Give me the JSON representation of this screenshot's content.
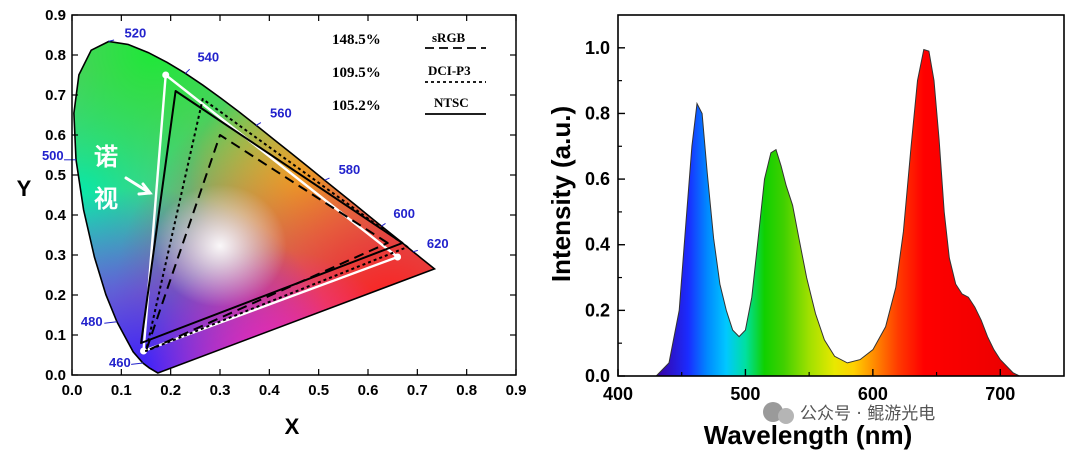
{
  "chart_data": [
    {
      "type": "scatter",
      "title": "",
      "xlabel": "X",
      "ylabel": "Y",
      "xlim": [
        0.0,
        0.9
      ],
      "ylim": [
        0.0,
        0.9
      ],
      "xticks": [
        "0.0",
        "0.1",
        "0.2",
        "0.3",
        "0.4",
        "0.5",
        "0.6",
        "0.7",
        "0.8",
        "0.9"
      ],
      "yticks": [
        "0.0",
        "0.1",
        "0.2",
        "0.3",
        "0.4",
        "0.5",
        "0.6",
        "0.7",
        "0.8",
        "0.9"
      ],
      "wavelength_labels": [
        {
          "text": "460",
          "x": 0.144,
          "y": 0.03
        },
        {
          "text": "480",
          "x": 0.091,
          "y": 0.133
        },
        {
          "text": "500",
          "x": 0.008,
          "y": 0.538
        },
        {
          "text": "520",
          "x": 0.074,
          "y": 0.834
        },
        {
          "text": "540",
          "x": 0.23,
          "y": 0.754
        },
        {
          "text": "560",
          "x": 0.373,
          "y": 0.624
        },
        {
          "text": "580",
          "x": 0.512,
          "y": 0.487
        },
        {
          "text": "600",
          "x": 0.627,
          "y": 0.372
        },
        {
          "text": "620",
          "x": 0.691,
          "y": 0.308
        }
      ],
      "locus": [
        [
          0.1741,
          0.005
        ],
        [
          0.1566,
          0.0177
        ],
        [
          0.144,
          0.0297
        ],
        [
          0.1241,
          0.0578
        ],
        [
          0.0913,
          0.1327
        ],
        [
          0.0687,
          0.2007
        ],
        [
          0.0454,
          0.295
        ],
        [
          0.0235,
          0.4127
        ],
        [
          0.0082,
          0.5384
        ],
        [
          0.0039,
          0.6548
        ],
        [
          0.0139,
          0.7502
        ],
        [
          0.0389,
          0.812
        ],
        [
          0.0743,
          0.8338
        ],
        [
          0.1142,
          0.8262
        ],
        [
          0.1547,
          0.8059
        ],
        [
          0.1929,
          0.7816
        ],
        [
          0.2296,
          0.7543
        ],
        [
          0.2658,
          0.7243
        ],
        [
          0.3016,
          0.6923
        ],
        [
          0.3373,
          0.6589
        ],
        [
          0.3731,
          0.6245
        ],
        [
          0.4087,
          0.5896
        ],
        [
          0.4441,
          0.5547
        ],
        [
          0.4788,
          0.5202
        ],
        [
          0.5125,
          0.4866
        ],
        [
          0.5448,
          0.4544
        ],
        [
          0.5752,
          0.4242
        ],
        [
          0.6029,
          0.3965
        ],
        [
          0.627,
          0.3725
        ],
        [
          0.6482,
          0.3514
        ],
        [
          0.6658,
          0.334
        ],
        [
          0.6801,
          0.3197
        ],
        [
          0.6915,
          0.3083
        ],
        [
          0.7006,
          0.2993
        ],
        [
          0.7079,
          0.292
        ],
        [
          0.714,
          0.2859
        ],
        [
          0.7347,
          0.2653
        ]
      ],
      "series": [
        {
          "name": "",
          "coverage": "148.5%",
          "points": [
            [
              0.19,
              0.75
            ],
            [
              0.66,
              0.295
            ],
            [
              0.145,
              0.06
            ]
          ],
          "style": "white-solid"
        },
        {
          "name": "sRGB",
          "coverage": "148.5%",
          "points": [
            [
              0.64,
              0.33
            ],
            [
              0.3,
              0.6
            ],
            [
              0.15,
              0.06
            ]
          ],
          "style": "black-dash-long"
        },
        {
          "name": "DCI-P3",
          "coverage": "109.5%",
          "points": [
            [
              0.68,
              0.32
            ],
            [
              0.265,
              0.69
            ],
            [
              0.15,
              0.06
            ]
          ],
          "style": "black-dash-short"
        },
        {
          "name": "NTSC",
          "coverage": "105.2%",
          "points": [
            [
              0.67,
              0.33
            ],
            [
              0.21,
              0.71
            ],
            [
              0.14,
              0.08
            ]
          ],
          "style": "black-solid"
        }
      ],
      "legend": [
        {
          "value": "148.5%",
          "name": "sRGB"
        },
        {
          "value": "109.5%",
          "name": "DCI-P3"
        },
        {
          "value": "105.2%",
          "name": "NTSC"
        }
      ],
      "annotation": [
        "诺",
        "视"
      ],
      "legend_position": "top-right"
    },
    {
      "type": "area",
      "title": "",
      "xlabel": "Wavelength (nm)",
      "ylabel": "Intensity (a.u.)",
      "xlim": [
        400,
        750
      ],
      "ylim": [
        0.0,
        1.1
      ],
      "xticks": [
        "400",
        "500",
        "600",
        "700"
      ],
      "yticks": [
        "0.0",
        "0.2",
        "0.4",
        "0.6",
        "0.8",
        "1.0"
      ],
      "spectrum": [
        [
          430,
          0.0
        ],
        [
          440,
          0.04
        ],
        [
          448,
          0.2
        ],
        [
          453,
          0.45
        ],
        [
          458,
          0.7
        ],
        [
          462,
          0.83
        ],
        [
          466,
          0.8
        ],
        [
          470,
          0.62
        ],
        [
          475,
          0.42
        ],
        [
          480,
          0.28
        ],
        [
          485,
          0.2
        ],
        [
          490,
          0.14
        ],
        [
          495,
          0.12
        ],
        [
          500,
          0.14
        ],
        [
          505,
          0.24
        ],
        [
          510,
          0.42
        ],
        [
          515,
          0.6
        ],
        [
          520,
          0.68
        ],
        [
          524,
          0.69
        ],
        [
          528,
          0.64
        ],
        [
          532,
          0.58
        ],
        [
          537,
          0.52
        ],
        [
          542,
          0.42
        ],
        [
          548,
          0.3
        ],
        [
          555,
          0.19
        ],
        [
          562,
          0.11
        ],
        [
          570,
          0.06
        ],
        [
          580,
          0.04
        ],
        [
          590,
          0.05
        ],
        [
          600,
          0.08
        ],
        [
          610,
          0.15
        ],
        [
          618,
          0.27
        ],
        [
          624,
          0.44
        ],
        [
          630,
          0.7
        ],
        [
          635,
          0.9
        ],
        [
          640,
          0.995
        ],
        [
          644,
          0.99
        ],
        [
          648,
          0.9
        ],
        [
          652,
          0.72
        ],
        [
          656,
          0.5
        ],
        [
          660,
          0.36
        ],
        [
          665,
          0.28
        ],
        [
          670,
          0.25
        ],
        [
          675,
          0.24
        ],
        [
          680,
          0.21
        ],
        [
          685,
          0.17
        ],
        [
          690,
          0.12
        ],
        [
          695,
          0.08
        ],
        [
          700,
          0.05
        ],
        [
          705,
          0.03
        ],
        [
          710,
          0.01
        ],
        [
          715,
          0.0
        ]
      ]
    }
  ],
  "watermark": "公众号 · 鲲游光电",
  "colors": {
    "axis": "#000000",
    "wavelength_text": "#2222cc"
  }
}
